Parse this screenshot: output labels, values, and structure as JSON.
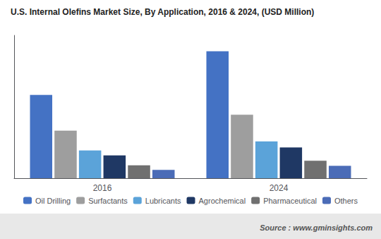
{
  "chart_data": {
    "type": "bar",
    "title": "U.S. Internal Olefins Market Size, By Application, 2016 & 2024, (USD Million)",
    "categories": [
      "2016",
      "2024"
    ],
    "series": [
      {
        "name": "Oil Drilling",
        "color": "#4472C4",
        "values": [
          420,
          640
        ]
      },
      {
        "name": "Surfactants",
        "color": "#9E9E9E",
        "values": [
          240,
          320
        ]
      },
      {
        "name": "Lubricants",
        "color": "#5BA3D9",
        "values": [
          140,
          185
        ]
      },
      {
        "name": "Agrochemical",
        "color": "#1F3864",
        "values": [
          115,
          155
        ]
      },
      {
        "name": "Pharmaceutical",
        "color": "#707070",
        "values": [
          65,
          88
        ]
      },
      {
        "name": "Others",
        "color": "#4B6CB7",
        "values": [
          42,
          62
        ]
      }
    ],
    "ylim": [
      0,
      720
    ],
    "yticks": [],
    "tick_labels": "x",
    "grid": false,
    "legend": "bottom",
    "annotations": [
      "Source : www.gminsights.com"
    ]
  }
}
